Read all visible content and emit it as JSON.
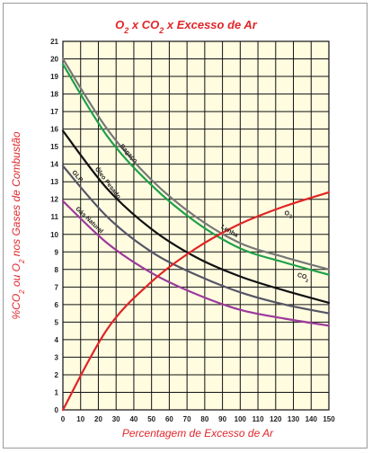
{
  "chart_data": {
    "type": "line",
    "title_parts": [
      "O",
      "2",
      " x CO",
      "2",
      " x Excesso de Ar"
    ],
    "xlabel": "Percentagem de Excesso de Ar",
    "ylabel_parts": [
      "%CO",
      "2",
      " ou O",
      "2",
      " nos Gases de Combustão"
    ],
    "xlim": [
      0,
      150
    ],
    "ylim": [
      0,
      21
    ],
    "xticks": [
      0,
      10,
      20,
      30,
      40,
      50,
      60,
      70,
      80,
      90,
      100,
      110,
      120,
      130,
      140,
      150
    ],
    "yticks": [
      0,
      1,
      2,
      3,
      4,
      5,
      6,
      7,
      8,
      9,
      10,
      11,
      12,
      13,
      14,
      15,
      16,
      17,
      18,
      19,
      20,
      21
    ],
    "grid": true,
    "plot_background": "#fffce0",
    "series": [
      {
        "name": "Lenha",
        "color": "#777777",
        "x": [
          0,
          25,
          50,
          75,
          100,
          125,
          150
        ],
        "y": [
          20.0,
          16.0,
          13.1,
          11.0,
          9.5,
          8.7,
          8.0
        ]
      },
      {
        "name": "Bagaço",
        "color": "#1fa04a",
        "x": [
          0,
          25,
          50,
          75,
          100,
          125,
          150
        ],
        "y": [
          19.7,
          15.6,
          12.8,
          10.7,
          9.2,
          8.4,
          7.7
        ]
      },
      {
        "name": "Óleo Pesado",
        "color": "#111111",
        "x": [
          0,
          25,
          50,
          75,
          100,
          125,
          150
        ],
        "y": [
          15.9,
          12.6,
          10.3,
          8.7,
          7.6,
          6.8,
          6.1
        ]
      },
      {
        "name": "GLP",
        "color": "#555566",
        "x": [
          0,
          25,
          50,
          75,
          100,
          125,
          150
        ],
        "y": [
          13.9,
          11.0,
          9.0,
          7.7,
          6.7,
          6.0,
          5.5
        ]
      },
      {
        "name": "Gás Natural",
        "color": "#9b3a9b",
        "x": [
          0,
          25,
          50,
          75,
          100,
          125,
          150
        ],
        "y": [
          11.9,
          9.5,
          7.8,
          6.6,
          5.7,
          5.2,
          4.8
        ]
      },
      {
        "name": "O2",
        "color": "#e02424",
        "x": [
          0,
          25,
          50,
          75,
          100,
          125,
          150
        ],
        "y": [
          0.0,
          4.6,
          7.3,
          9.2,
          10.6,
          11.6,
          12.4
        ]
      }
    ],
    "curve_labels": [
      {
        "text": "Lenha",
        "series": "Lenha",
        "x": 89
      },
      {
        "text": "Bagaço",
        "series": "Bagaço",
        "x": 32
      },
      {
        "text": "Óleo Pesado",
        "series": "Óleo Pesado",
        "x": 18
      },
      {
        "text": "GLP",
        "series": "GLP",
        "x": 5
      },
      {
        "text": "Gás Natural",
        "series": "Gás Natural",
        "x": 7
      },
      {
        "text_parts": [
          "O",
          "2"
        ],
        "series": "O2",
        "x": 125
      },
      {
        "text_parts": [
          "CO",
          "2"
        ],
        "series": "Bagaço",
        "x": 132
      }
    ]
  }
}
